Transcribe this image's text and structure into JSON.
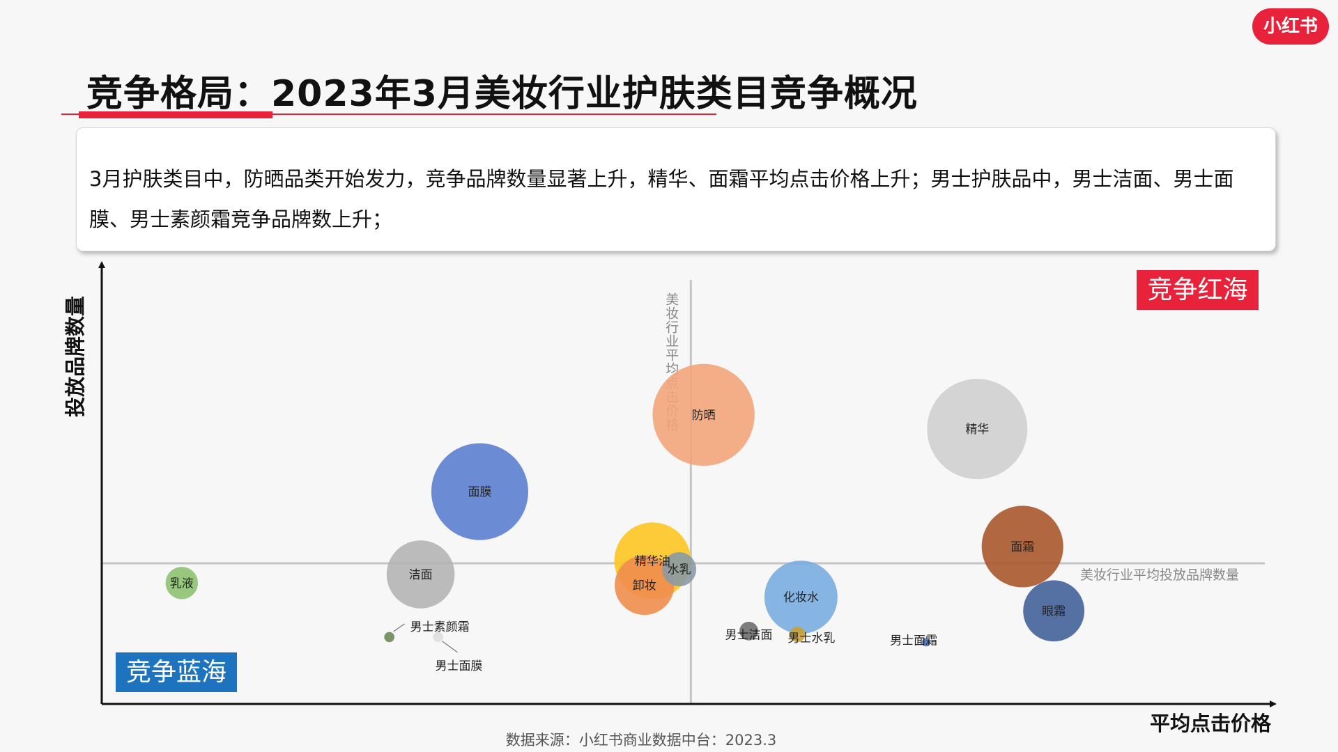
{
  "brand": {
    "logo_text": "小红书",
    "color": "#e8223a"
  },
  "title": "竞争格局：2023年3月美妆行业护肤类目竞争概况",
  "summary": "3月护肤类目中，防晒品类开始发力，竞争品牌数量显著上升，精华、面霜平均点击价格上升；男士护肤品中，男士洁面、男士面膜、男士素颜霜竞争品牌数上升；",
  "zones": {
    "red_ocean": "竞争红海",
    "blue_ocean": "竞争蓝海"
  },
  "source": "数据来源：小红书商业数据中台：2023.3",
  "chart_data": {
    "type": "bubble",
    "xlabel": "平均点击价格",
    "ylabel": "投放品牌数量",
    "xlim": [
      0,
      100
    ],
    "ylim": [
      0,
      100
    ],
    "tick_labels": "none",
    "reference_lines": [
      {
        "axis": "x",
        "value": 50.8,
        "label": "美妆行业平均点击价格"
      },
      {
        "axis": "y",
        "value": 32.8,
        "label": "美妆行业平均投放品牌数量"
      }
    ],
    "points": [
      {
        "label": "防晒",
        "x": 51.9,
        "y": 67.4,
        "size": 60,
        "color": "#f2a57a"
      },
      {
        "label": "精华",
        "x": 75.5,
        "y": 64.1,
        "size": 59,
        "color": "#cfcfcf"
      },
      {
        "label": "面膜",
        "x": 32.6,
        "y": 49.5,
        "size": 57,
        "color": "#5b80cf"
      },
      {
        "label": "面霜",
        "x": 79.4,
        "y": 36.7,
        "size": 48,
        "color": "#a9562b"
      },
      {
        "label": "精华油",
        "x": 47.5,
        "y": 33.4,
        "size": 45,
        "color": "#fdc521"
      },
      {
        "label": "洁面",
        "x": 27.5,
        "y": 30.2,
        "size": 40,
        "color": "#b4b4b4"
      },
      {
        "label": "卸妆",
        "x": 46.8,
        "y": 27.7,
        "size": 35,
        "color": "#f08d4c"
      },
      {
        "label": "水乳",
        "x": 49.8,
        "y": 31.4,
        "size": 20,
        "color": "#8a9aa5"
      },
      {
        "label": "化妆水",
        "x": 60.3,
        "y": 24.9,
        "size": 43,
        "color": "#79ade0"
      },
      {
        "label": "眼霜",
        "x": 82.1,
        "y": 21.7,
        "size": 36,
        "color": "#43629a"
      },
      {
        "label": "乳液",
        "x": 6.9,
        "y": 28.2,
        "size": 19,
        "color": "#8cc26f"
      },
      {
        "label": "男士洁面",
        "x": 55.8,
        "y": 17.0,
        "size": 11,
        "color": "#6e6e6e"
      },
      {
        "label": "男士水乳",
        "x": 60.0,
        "y": 16.2,
        "size": 9,
        "color": "#c8a033"
      },
      {
        "label": "男士面霜",
        "x": 71.1,
        "y": 14.4,
        "size": 5,
        "color": "#4876b8"
      },
      {
        "label": "男士素颜霜",
        "x": 24.8,
        "y": 15.6,
        "size": 6,
        "color": "#6b8a54"
      },
      {
        "label": "男士面膜",
        "x": 29.0,
        "y": 15.6,
        "size": 6,
        "color": "#dedede"
      }
    ]
  }
}
